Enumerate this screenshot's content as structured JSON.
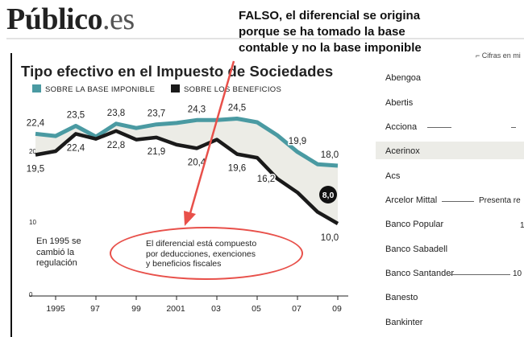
{
  "header": {
    "logo_main": "Público",
    "logo_suffix": ".es"
  },
  "note": {
    "lines": [
      "FALSO, el diferencial se origina",
      "porque se ha tomado la base",
      "contable y no la base imponible"
    ]
  },
  "chart_data": {
    "type": "line",
    "title": "Tipo efectivo en el Impuesto de Sociedades",
    "series": [
      {
        "name": "SOBRE LA BASE IMPONIBLE",
        "color": "#4a9aa2",
        "values": [
          22.4,
          22.1,
          23.5,
          22.0,
          23.8,
          23.2,
          23.7,
          23.9,
          24.3,
          24.3,
          24.5,
          24.0,
          22.2,
          19.9,
          18.2,
          18.0
        ]
      },
      {
        "name": "SOBRE LOS BENEFICIOS",
        "color": "#1a1a1a",
        "values": [
          19.5,
          20.0,
          22.4,
          21.7,
          22.8,
          21.6,
          21.9,
          20.9,
          20.4,
          21.6,
          19.6,
          19.1,
          16.2,
          14.3,
          11.6,
          10.0
        ]
      }
    ],
    "x": [
      1994,
      1995,
      1996,
      1997,
      1998,
      1999,
      2000,
      2001,
      2002,
      2003,
      2004,
      2005,
      2006,
      2007,
      2008,
      2009
    ],
    "xticks": [
      "1995",
      "97",
      "99",
      "2001",
      "03",
      "05",
      "07",
      "09"
    ],
    "yticks": [
      "20",
      "10",
      "0"
    ],
    "ylim": [
      0,
      26
    ],
    "data_labels": {
      "teal": [
        {
          "i": 0,
          "text": "22,4"
        },
        {
          "i": 2,
          "text": "23,5"
        },
        {
          "i": 4,
          "text": "23,8"
        },
        {
          "i": 6,
          "text": "23,7"
        },
        {
          "i": 8,
          "text": "24,3"
        },
        {
          "i": 10,
          "text": "24,5"
        },
        {
          "i": 13,
          "text": "19,9"
        },
        {
          "i": 15,
          "text": "18,0"
        }
      ],
      "black": [
        {
          "i": 0,
          "text": "19,5"
        },
        {
          "i": 2,
          "text": "22,4"
        },
        {
          "i": 4,
          "text": "22,8"
        },
        {
          "i": 6,
          "text": "21,9"
        },
        {
          "i": 8,
          "text": "20,4"
        },
        {
          "i": 10,
          "text": "19,6"
        },
        {
          "i": 12,
          "text": "16,2"
        },
        {
          "i": 15,
          "text": "10,0"
        }
      ],
      "gap_badge": "8,0"
    },
    "annotations": {
      "left": [
        "En 1995 se",
        "cambió la",
        "regulación"
      ],
      "circled": [
        "El diferencial está compuesto",
        "por deducciones, exenciones",
        "y beneficios fiscales"
      ]
    }
  },
  "side_table": {
    "units": "Cifras en mi",
    "companies": [
      "Abengoa",
      "Abertis",
      "Acciona",
      "Acerinox",
      "Acs",
      "Arcelor Mittal",
      "Banco Popular",
      "Banco Sabadell",
      "Banco Santander",
      "Banesto",
      "Bankinter"
    ],
    "highlighted": "Acerinox",
    "arcelor_note": "Presenta re",
    "popular_value": "1",
    "santander_value": "10"
  },
  "colors": {
    "teal": "#4a9aa2",
    "fill": "#ecece6",
    "arrow": "#e8504a"
  }
}
